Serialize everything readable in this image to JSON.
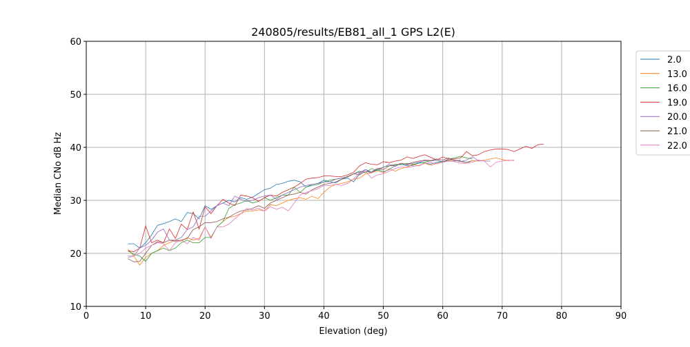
{
  "chart_data": {
    "type": "line",
    "title": "240805/results/EB81_all_1 GPS L2(E)",
    "xlabel": "Elevation (deg)",
    "ylabel": "Median CNo dB Hz",
    "xlim": [
      0,
      90
    ],
    "ylim": [
      10,
      60
    ],
    "xticks": [
      0,
      10,
      20,
      30,
      40,
      50,
      60,
      70,
      80,
      90
    ],
    "yticks": [
      10,
      20,
      30,
      40,
      50,
      60
    ],
    "grid": true,
    "legend_position": "outside-right",
    "series": [
      {
        "name": "2.0",
        "color": "#1f77b4",
        "x_start": 7,
        "values": [
          21.8,
          21.8,
          21,
          22,
          23.5,
          25.3,
          25.6,
          26,
          26.5,
          26,
          27.7,
          27.5,
          26.5,
          29,
          28.3,
          29,
          29.5,
          30,
          29.7,
          30.5,
          30.2,
          30.6,
          31.3,
          32,
          32.3,
          33,
          33.2,
          33.6,
          33.8,
          33.5,
          32.5,
          33,
          33.2,
          33.8,
          33.5,
          33.3,
          34,
          34.2,
          33.5,
          35,
          35.8,
          35.2,
          35.8,
          35.4,
          35.8,
          36.6,
          36.8,
          36.5,
          36.6,
          37.2,
          37,
          36.8,
          37.2,
          37.3,
          37.6,
          37.6,
          37.4,
          37.2,
          37.5
        ]
      },
      {
        "name": "13.0",
        "color": "#ff7f0e",
        "x_start": 7,
        "values": [
          20.8,
          19.5,
          17.8,
          19.2,
          20,
          20.5,
          21.5,
          22,
          22.5,
          22.3,
          23,
          22.5,
          22.8,
          25,
          23,
          25,
          26,
          26.8,
          27,
          27.5,
          28,
          28,
          28.2,
          28,
          29.2,
          29,
          29.5,
          30,
          30.3,
          30.5,
          30.2,
          30.8,
          30.3,
          31.5,
          32.5,
          33,
          33.2,
          33.5,
          34,
          34.2,
          35,
          35.2,
          35.6,
          35.2,
          36,
          35.5,
          36,
          36.3,
          36.8,
          36.5,
          37,
          36.6,
          37,
          37.2,
          37.5,
          37.6,
          37.3,
          37,
          37.5,
          37.4,
          37.6,
          37.8,
          38,
          37.7,
          37.5,
          37.6
        ]
      },
      {
        "name": "16.0",
        "color": "#2ca02c",
        "x_start": 7,
        "values": [
          20.5,
          19.8,
          19.5,
          18.5,
          20,
          20.5,
          21,
          20.5,
          21,
          22,
          22.5,
          22,
          22,
          23,
          23,
          25,
          26,
          28.5,
          29.2,
          29.5,
          30,
          29.5,
          29.8,
          30.5,
          30,
          30.5,
          31,
          31,
          32.5,
          31.5,
          32.5,
          32.8,
          33,
          33.5,
          33.8,
          34,
          34.2,
          34.4,
          35,
          35.5,
          35.2,
          36,
          35.6,
          36.3,
          36.5,
          36.8,
          36.7,
          37,
          36.8,
          37,
          37.2,
          37.5,
          37.6,
          37.2,
          37.8,
          38,
          38.3,
          38,
          37.8
        ]
      },
      {
        "name": "19.0",
        "color": "#d62728",
        "x_start": 7,
        "values": [
          20.5,
          20.3,
          21,
          25.2,
          22,
          22.5,
          22,
          24.6,
          22.8,
          25.5,
          24.5,
          27.8,
          24.6,
          28.8,
          27.5,
          29,
          30.2,
          29.5,
          29,
          31,
          30.8,
          30.5,
          29.8,
          30.5,
          31,
          30.8,
          31.5,
          32,
          32.5,
          33.2,
          34,
          34.2,
          34.3,
          34.6,
          34.6,
          34.5,
          34.5,
          34.8,
          35.3,
          36.5,
          37.1,
          36.8,
          36.7,
          37.3,
          37.1,
          37.4,
          37.6,
          38.2,
          37.9,
          38.3,
          38.6,
          38.1,
          37.6,
          38.2,
          37.8,
          37.8,
          38,
          39.2,
          38.4,
          38.6,
          39.2,
          39.5,
          39.7,
          39.7,
          39.6,
          39.2,
          39.7,
          40.2,
          39.8,
          40.5,
          40.6
        ]
      },
      {
        "name": "20.0",
        "color": "#9467bd",
        "x_start": 7,
        "values": [
          19.5,
          19.5,
          21,
          21.5,
          22.5,
          24,
          24.6,
          22.5,
          22.5,
          23,
          24.5,
          25,
          27,
          27,
          28,
          29,
          29.5,
          29,
          30.8,
          30.2,
          29.8,
          30,
          30.5,
          30.8,
          31,
          30.2,
          31,
          31.5,
          32,
          32.5,
          32.8,
          33,
          33.2,
          33.5,
          33.5,
          34,
          34.2,
          34.5,
          35,
          35.3,
          35.8,
          35.4,
          36,
          36.2,
          36.8,
          36.4,
          37,
          36.7,
          37,
          37.2,
          37.5,
          37.4,
          37.6,
          37.3,
          37.8,
          37.6,
          37.3,
          37.6,
          38.2,
          37.5,
          37.4,
          37.4
        ]
      },
      {
        "name": "21.0",
        "color": "#8c564b",
        "x_start": 7,
        "values": [
          19,
          18.4,
          18.5,
          20,
          21.5,
          22.2,
          22,
          22.5,
          22.3,
          22.5,
          22.8,
          24.5,
          25,
          25.8,
          25.8,
          26,
          26.5,
          26.8,
          27.5,
          28,
          28.2,
          28.5,
          29,
          28.5,
          29.5,
          30,
          30.5,
          31,
          31.2,
          31.5,
          31.2,
          32,
          32.5,
          33,
          33.2,
          33.5,
          34,
          34.5,
          35,
          34.8,
          35.5,
          35.2,
          36,
          35.8,
          36.5,
          36.6,
          37,
          36.8,
          37.2,
          37.4,
          37.6,
          37.5,
          37.8,
          37.6,
          38,
          37.4,
          37.6
        ]
      },
      {
        "name": "22.0",
        "color": "#e377c2",
        "x_start": 7,
        "values": [
          19.2,
          19.5,
          20,
          21,
          21.5,
          22,
          21.8,
          20.5,
          22,
          22.5,
          21.8,
          23,
          22.5,
          25,
          22.8,
          25,
          25,
          25.5,
          26.5,
          27.5,
          28.5,
          28.2,
          28.5,
          28,
          28.8,
          28.3,
          28.7,
          28,
          29.5,
          31,
          31.5,
          31.8,
          32.2,
          32.8,
          32.8,
          33,
          32.8,
          33.2,
          34,
          35.2,
          35.5,
          34.2,
          34.8,
          35,
          35.5,
          36,
          36.3,
          36.2,
          36.4,
          36.6,
          37,
          37.1,
          36.9,
          37.2,
          37.4,
          37.3,
          37,
          37,
          37.2,
          37.6,
          37.4,
          36.3,
          37.2,
          37.4,
          37.6,
          37.5
        ]
      }
    ]
  }
}
